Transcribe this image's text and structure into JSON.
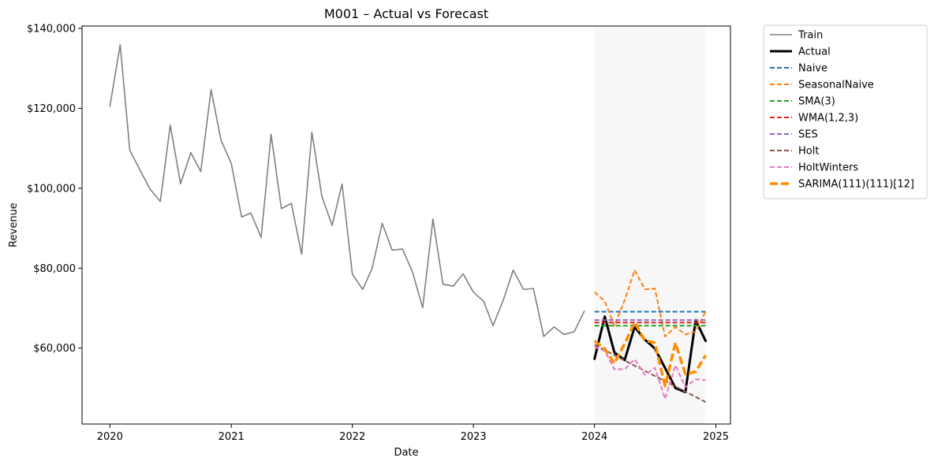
{
  "chart_data": {
    "type": "line",
    "title": "M001 – Actual vs Forecast",
    "xlabel": "Date",
    "ylabel": "Revenue",
    "xlim": [
      "2019-10-09",
      "2025-02-14"
    ],
    "ylim": [
      41000,
      140600
    ],
    "x_ticks": [
      {
        "date": "2020-01-01",
        "label": "2020"
      },
      {
        "date": "2021-01-01",
        "label": "2021"
      },
      {
        "date": "2022-01-01",
        "label": "2022"
      },
      {
        "date": "2023-01-01",
        "label": "2023"
      },
      {
        "date": "2024-01-01",
        "label": "2024"
      },
      {
        "date": "2025-01-01",
        "label": "2025"
      }
    ],
    "y_ticks": [
      {
        "value": 60000,
        "label": "$60,000"
      },
      {
        "value": 80000,
        "label": "$80,000"
      },
      {
        "value": 100000,
        "label": "$100,000"
      },
      {
        "value": 120000,
        "label": "$120,000"
      },
      {
        "value": 140000,
        "label": "$140,000"
      }
    ],
    "forecast_window": {
      "start": "2024-01-01",
      "end": "2024-12-01",
      "color": "#ebebeb"
    },
    "legend_position": "outside-right",
    "grid": false,
    "series": [
      {
        "name": "Train",
        "color": "#808080",
        "style": "solid",
        "width": 1.6,
        "x": [
          "2020-01-01",
          "2020-02-01",
          "2020-03-01",
          "2020-04-01",
          "2020-05-01",
          "2020-06-01",
          "2020-07-01",
          "2020-08-01",
          "2020-09-01",
          "2020-10-01",
          "2020-11-01",
          "2020-12-01",
          "2021-01-01",
          "2021-02-01",
          "2021-03-01",
          "2021-04-01",
          "2021-05-01",
          "2021-06-01",
          "2021-07-01",
          "2021-08-01",
          "2021-09-01",
          "2021-10-01",
          "2021-11-01",
          "2021-12-01",
          "2022-01-01",
          "2022-02-01",
          "2022-03-01",
          "2022-04-01",
          "2022-05-01",
          "2022-06-01",
          "2022-07-01",
          "2022-08-01",
          "2022-09-01",
          "2022-10-01",
          "2022-11-01",
          "2022-12-01",
          "2023-01-01",
          "2023-02-01",
          "2023-03-01",
          "2023-04-01",
          "2023-05-01",
          "2023-06-01",
          "2023-07-01",
          "2023-08-01",
          "2023-09-01",
          "2023-10-01",
          "2023-11-01",
          "2023-12-01"
        ],
        "values": [
          120500,
          135900,
          109500,
          104500,
          99800,
          96700,
          115800,
          101100,
          108900,
          104200,
          124700,
          112000,
          106200,
          92800,
          93800,
          87700,
          113500,
          94900,
          96200,
          83500,
          114000,
          98000,
          90700,
          101100,
          78500,
          74700,
          79800,
          91200,
          84500,
          84800,
          79100,
          70100,
          92300,
          76000,
          75500,
          78600,
          74000,
          71700,
          65600,
          72000,
          79500,
          74700,
          74900,
          62900,
          65300,
          63400,
          64100,
          69200
        ]
      },
      {
        "name": "Actual",
        "color": "#000000",
        "style": "solid",
        "width": 3,
        "x": [
          "2024-01-01",
          "2024-02-01",
          "2024-03-01",
          "2024-04-01",
          "2024-05-01",
          "2024-06-01",
          "2024-07-01",
          "2024-08-01",
          "2024-09-01",
          "2024-10-01",
          "2024-11-01",
          "2024-12-01"
        ],
        "values": [
          57300,
          67900,
          58900,
          57000,
          65300,
          62100,
          59900,
          55000,
          50000,
          49000,
          67000,
          61800
        ]
      },
      {
        "name": "Naive",
        "color": "#1f77b4",
        "style": "dashed",
        "width": 2,
        "x": [
          "2024-01-01",
          "2024-12-01"
        ],
        "values": [
          69100,
          69100
        ]
      },
      {
        "name": "SeasonalNaive",
        "color": "#ff7f0e",
        "style": "dashed",
        "width": 2,
        "x": [
          "2024-01-01",
          "2024-02-01",
          "2024-03-01",
          "2024-04-01",
          "2024-05-01",
          "2024-06-01",
          "2024-07-01",
          "2024-08-01",
          "2024-09-01",
          "2024-10-01",
          "2024-11-01",
          "2024-12-01"
        ],
        "values": [
          74000,
          71700,
          65600,
          72000,
          79500,
          74700,
          74900,
          62900,
          65300,
          63400,
          64100,
          69200
        ]
      },
      {
        "name": "SMA(3)",
        "color": "#2ca02c",
        "style": "dashed",
        "width": 2,
        "x": [
          "2024-01-01",
          "2024-12-01"
        ],
        "values": [
          65600,
          65600
        ]
      },
      {
        "name": "WMA(1,2,3)",
        "color": "#d62728",
        "style": "dashed",
        "width": 2,
        "x": [
          "2024-01-01",
          "2024-12-01"
        ],
        "values": [
          66400,
          66400
        ]
      },
      {
        "name": "SES",
        "color": "#9467bd",
        "style": "dashed",
        "width": 2,
        "x": [
          "2024-01-01",
          "2024-12-01"
        ],
        "values": [
          67000,
          67000
        ]
      },
      {
        "name": "Holt",
        "color": "#8c564b",
        "style": "dashed",
        "width": 2,
        "x": [
          "2024-01-01",
          "2024-02-01",
          "2024-03-01",
          "2024-04-01",
          "2024-05-01",
          "2024-06-01",
          "2024-07-01",
          "2024-08-01",
          "2024-09-01",
          "2024-10-01",
          "2024-11-01",
          "2024-12-01"
        ],
        "values": [
          60800,
          59500,
          58200,
          56900,
          55600,
          54300,
          53000,
          51700,
          50400,
          49100,
          47800,
          46500
        ]
      },
      {
        "name": "HoltWinters",
        "color": "#e377c2",
        "style": "dashed",
        "width": 2,
        "x": [
          "2024-01-01",
          "2024-02-01",
          "2024-03-01",
          "2024-04-01",
          "2024-05-01",
          "2024-06-01",
          "2024-07-01",
          "2024-08-01",
          "2024-09-01",
          "2024-10-01",
          "2024-11-01",
          "2024-12-01"
        ],
        "values": [
          60300,
          59300,
          54700,
          54700,
          57200,
          53300,
          55100,
          47300,
          55700,
          50200,
          52200,
          52000
        ]
      },
      {
        "name": "SARIMA(111)(111)[12]",
        "color": "#ff8c00",
        "style": "dashed",
        "width": 3.5,
        "x": [
          "2024-01-01",
          "2024-02-01",
          "2024-03-01",
          "2024-04-01",
          "2024-05-01",
          "2024-06-01",
          "2024-07-01",
          "2024-08-01",
          "2024-09-01",
          "2024-10-01",
          "2024-11-01",
          "2024-12-01"
        ],
        "values": [
          61800,
          59800,
          56200,
          61100,
          66400,
          61900,
          61300,
          50500,
          61300,
          53500,
          54100,
          58200
        ]
      }
    ]
  }
}
